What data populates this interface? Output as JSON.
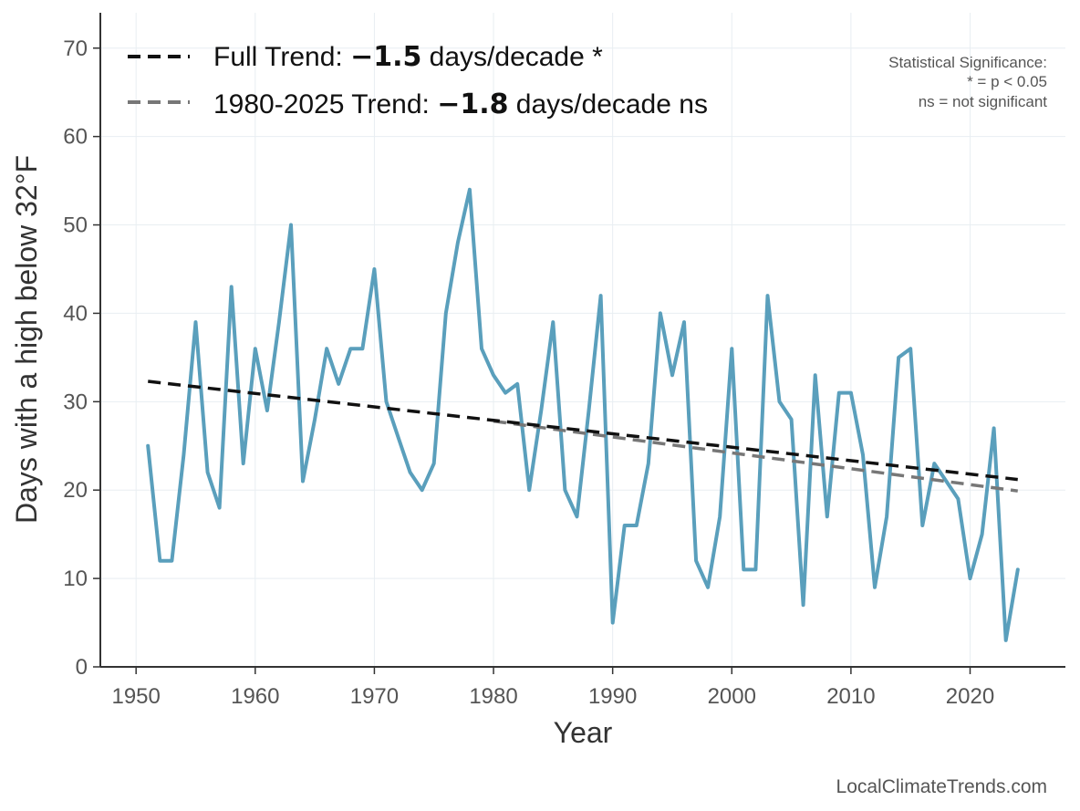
{
  "chart_data": {
    "type": "line",
    "title": "",
    "xlabel": "Year",
    "ylabel": "Days with a high below 32°F",
    "xlim": [
      1947,
      2028
    ],
    "ylim": [
      0,
      74
    ],
    "xticks": [
      "1950",
      "1960",
      "1970",
      "1980",
      "1990",
      "2000",
      "2010",
      "2020"
    ],
    "yticks": [
      "0",
      "10",
      "20",
      "30",
      "40",
      "50",
      "60",
      "70"
    ],
    "grid": true,
    "series": [
      {
        "name": "Days with a high below 32°F",
        "color": "#5a9fbc",
        "x": [
          1951,
          1952,
          1953,
          1954,
          1955,
          1956,
          1957,
          1958,
          1959,
          1960,
          1961,
          1962,
          1963,
          1964,
          1965,
          1966,
          1967,
          1968,
          1969,
          1970,
          1971,
          1972,
          1973,
          1974,
          1975,
          1976,
          1977,
          1978,
          1979,
          1980,
          1981,
          1982,
          1983,
          1984,
          1985,
          1986,
          1987,
          1988,
          1989,
          1990,
          1991,
          1992,
          1993,
          1994,
          1995,
          1996,
          1997,
          1998,
          1999,
          2000,
          2001,
          2002,
          2003,
          2004,
          2005,
          2006,
          2007,
          2008,
          2009,
          2010,
          2011,
          2012,
          2013,
          2014,
          2015,
          2016,
          2017,
          2018,
          2019,
          2020,
          2021,
          2022,
          2023,
          2024
        ],
        "values": [
          25,
          12,
          12,
          24,
          39,
          22,
          18,
          43,
          23,
          36,
          29,
          39,
          50,
          21,
          28,
          36,
          32,
          36,
          36,
          45,
          30,
          26,
          22,
          20,
          23,
          40,
          48,
          54,
          36,
          33,
          31,
          32,
          20,
          29,
          39,
          20,
          17,
          29,
          42,
          5,
          16,
          16,
          23,
          40,
          33,
          39,
          12,
          9,
          17,
          36,
          11,
          11,
          42,
          30,
          28,
          7,
          33,
          17,
          31,
          31,
          24,
          9,
          17,
          35,
          36,
          16,
          23,
          21,
          19,
          10,
          15,
          27,
          3,
          11
        ]
      }
    ],
    "trends": [
      {
        "name": "Full Trend",
        "color": "#111111",
        "x": [
          1951,
          2024
        ],
        "y": [
          32.3,
          21.2
        ]
      },
      {
        "name": "1980-2025 Trend",
        "color": "#777777",
        "x": [
          1980,
          2024
        ],
        "y": [
          27.8,
          19.9
        ]
      }
    ],
    "legend": {
      "position": "top-left",
      "items": [
        {
          "prefix": "Full Trend: ",
          "value": "−1.5",
          "suffix": " days/decade *",
          "color": "#111111"
        },
        {
          "prefix": "1980-2025 Trend: ",
          "value": "−1.8",
          "suffix": " days/decade ns",
          "color": "#777777"
        }
      ]
    },
    "significance_note": [
      "Statistical Significance:",
      "* = p < 0.05",
      "ns = not significant"
    ],
    "source": "LocalClimateTrends.com"
  }
}
